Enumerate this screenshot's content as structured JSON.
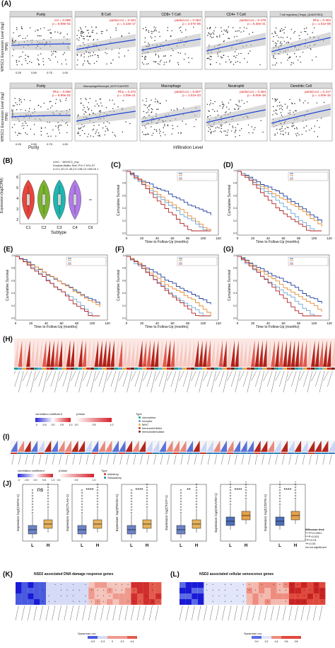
{
  "panels": {
    "A": {
      "label": "(A)",
      "row1_ylabel": "WHSC1 Expression Level (log2 TPM)",
      "row2_ylabel": "WHSC1 Expression Level (log2 TPM)",
      "row_tag": "LIHC",
      "xlabel": "Infiltration Level",
      "purity_xlabel": "Purity",
      "row1": [
        {
          "title": "Purity",
          "stat1": "cor = 0.098",
          "stat2": "p = 6.99e-02"
        },
        {
          "title": "B Cell",
          "stat1": "partial.cor = 0.434",
          "stat2": "p = 3.23e-17"
        },
        {
          "title": "CD8+ T Cell",
          "stat1": "partial.cor = 0.253",
          "stat2": "p = 2.07e-06"
        },
        {
          "title": "CD4+ T Cell",
          "stat1": "partial.cor = 0.478",
          "stat2": "p = 5.30e-21"
        },
        {
          "title": "T cell regulatory (Tregs)_QUANTISEQ",
          "stat1": "Rho = 0.303",
          "stat2": "p = 1.01e-08"
        }
      ],
      "row2": [
        {
          "title": "Purity",
          "stat1": "Rho = 0.098",
          "stat2": "p = 6.99e-02"
        },
        {
          "title": "Macrophage/Monocyte_MCPCOUNTER",
          "stat1": "Rho = 0.473",
          "stat2": "p = 1.09e-21"
        },
        {
          "title": "Macrophage",
          "stat1": "partial.cor = 0.507",
          "stat2": "p = 1.01e-23"
        },
        {
          "title": "Neutrophil",
          "stat1": "partial.cor = 0.453",
          "stat2": "p = 8.00e-19"
        },
        {
          "title": "Dendritic Cell",
          "stat1": "partial.cor = 0.417",
          "stat2": "p = 1.00e-15"
        }
      ],
      "xticks_purity": [
        "0.25",
        "0.50",
        "0.75",
        "1.00"
      ]
    },
    "B": {
      "label": "(B)",
      "title1": "LIHC :: WHSC1_exp",
      "title2": "Kruskal-Wallis Test: PV=7.97e-07",
      "title3": "n=C1 22,C2 45,C3 135,C4 159,C6 1",
      "ylabel": "Expression (log2CPM)",
      "xlabel": "Subtype",
      "categories": [
        "C1",
        "C2",
        "C3",
        "C4",
        "C6"
      ],
      "yticks": [
        "6",
        "5",
        "4",
        "3",
        "2"
      ],
      "colors": [
        "#e8453c",
        "#7ab32e",
        "#1fb5b0",
        "#b07be8",
        "#888888"
      ]
    },
    "C": {
      "label": "(C)",
      "ylabel": "Cumulative Survival",
      "xlabel": "Time to Follow-Up (months)",
      "xticks": [
        "0",
        "20",
        "40",
        "60",
        "80",
        "100",
        "120"
      ]
    },
    "D": {
      "label": "(D)",
      "ylabel": "Cumulative Survival",
      "xlabel": "Time to Follow-Up (months)",
      "xticks": [
        "0",
        "20",
        "40",
        "60",
        "80",
        "100",
        "120"
      ]
    },
    "E": {
      "label": "(E)",
      "ylabel": "Cumulative Survival",
      "xlabel": "Time to Follow-Up (months)",
      "xticks": [
        "0",
        "20",
        "40",
        "60",
        "80",
        "100",
        "120"
      ]
    },
    "F": {
      "label": "(F)",
      "ylabel": "Cumulative Survival",
      "xlabel": "Time to Follow-Up (months)",
      "xticks": [
        "0",
        "20",
        "40",
        "60",
        "80",
        "100",
        "120"
      ]
    },
    "G": {
      "label": "(G)",
      "ylabel": "Cumulative Survival",
      "xlabel": "Time to Follow-Up (months)",
      "xticks": [
        "0",
        "20",
        "40",
        "60",
        "80",
        "100",
        "120"
      ]
    },
    "H": {
      "label": "(H)",
      "legend_corr": "correlation coefficient",
      "legend_p": "pValue",
      "legend_type": "Type",
      "corr_ticks": [
        "-1.0",
        "-0.5",
        "0.0",
        "0.5",
        "1.0"
      ],
      "p_ticks": [
        "0.0",
        "0.5",
        "1.0"
      ],
      "types": [
        {
          "name": "chemokine",
          "color": "#1a9e8f"
        },
        {
          "name": "receptor",
          "color": "#5aa0d8"
        },
        {
          "name": "MHC",
          "color": "#e2b13c"
        },
        {
          "name": "immunoinhibitor",
          "color": "#c0342b"
        },
        {
          "name": "immunostimulator",
          "color": "#7b1f1f"
        }
      ]
    },
    "I": {
      "label": "(I)",
      "legend_corr": "correlation coefficient",
      "legend_p": "pValue",
      "legend_type": "Type",
      "corr_ticks": [
        "-1.0",
        "-0.5",
        "0.0",
        "0.5",
        "1.0"
      ],
      "p_ticks": [
        "0.0",
        "0.5",
        "1.0"
      ],
      "types": [
        {
          "name": "inhibitory",
          "color": "#c0342b"
        },
        {
          "name": "Stimulatory",
          "color": "#2a7ab8"
        }
      ]
    },
    "J": {
      "label": "(J)",
      "groups": [
        "L",
        "H"
      ],
      "plots": [
        {
          "ylabel": "Expression: log2(CD274+1)",
          "sig": "ns"
        },
        {
          "ylabel": "Expression: log2(CTLA4+1)",
          "sig": "****"
        },
        {
          "ylabel": "Expression: log2(PDCD1+1)",
          "sig": "****"
        },
        {
          "ylabel": "Expression: log2(TIGIT+1)",
          "sig": "**"
        },
        {
          "ylabel": "Expression: log2(HAVCR2+1)",
          "sig": "****"
        },
        {
          "ylabel": "Expression: log2(CD276+1)",
          "sig": "****"
        }
      ],
      "legend_title": "Wilcoxon test:",
      "legend_lines": [
        "****P<0.0001",
        "***P<0.001",
        "**P<0.01",
        "*P<0.05",
        "ns:not significant"
      ]
    },
    "K": {
      "label": "(K)",
      "title": "NSD2 associated DNA damage response genes",
      "legend_label": "Spearman cor.",
      "legend_ticks": [
        "-0.5",
        "-0.3",
        "0",
        "0.2",
        "0.4"
      ]
    },
    "L": {
      "label": "(L)",
      "title": "NSD2 associated cellular senescence genes",
      "legend_label": "Spearman cor.",
      "legend_ticks": [
        "0.0",
        "0.2",
        "0.4",
        "0.6",
        "0.8"
      ]
    }
  }
}
